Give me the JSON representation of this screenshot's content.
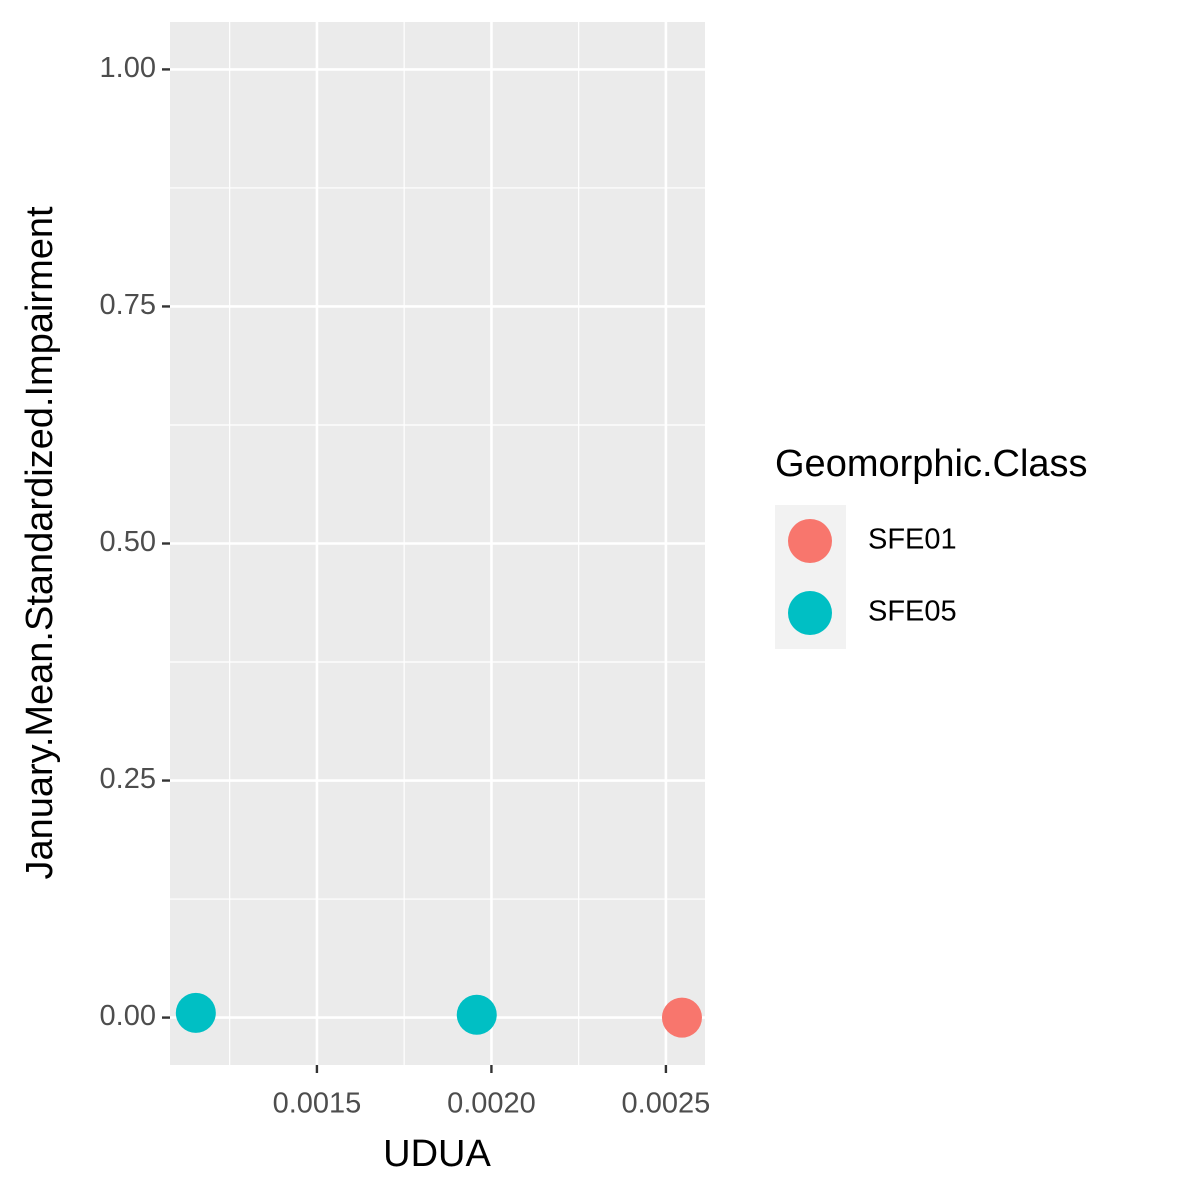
{
  "chart_data": {
    "type": "scatter",
    "x_label": "UDUA",
    "y_label": "January.Mean.Standardized.Impairment",
    "legend_title": "Geomorphic.Class",
    "legend_position": "right",
    "grid": true,
    "xlim": [
      0.001079,
      0.002612
    ],
    "ylim": [
      -0.05,
      1.05
    ],
    "xticks": [
      0.0015,
      {
        "value": 0.002,
        "label": "0.0020"
      },
      0.0025
    ],
    "yticks": [
      {
        "value": 0,
        "label": "0.00"
      },
      0.25,
      {
        "value": 0.5,
        "label": "0.50"
      },
      0.75,
      {
        "value": 1,
        "label": "1.00"
      }
    ],
    "series": [
      {
        "name": "SFE01",
        "color": "#F8766D",
        "x": [
          0.002546
        ],
        "values": [
          0
        ]
      },
      {
        "name": "SFE05",
        "color": "#00BFC4",
        "x": [
          0.001153,
          0.001958
        ],
        "values": [
          0.005,
          0.003
        ]
      }
    ]
  }
}
